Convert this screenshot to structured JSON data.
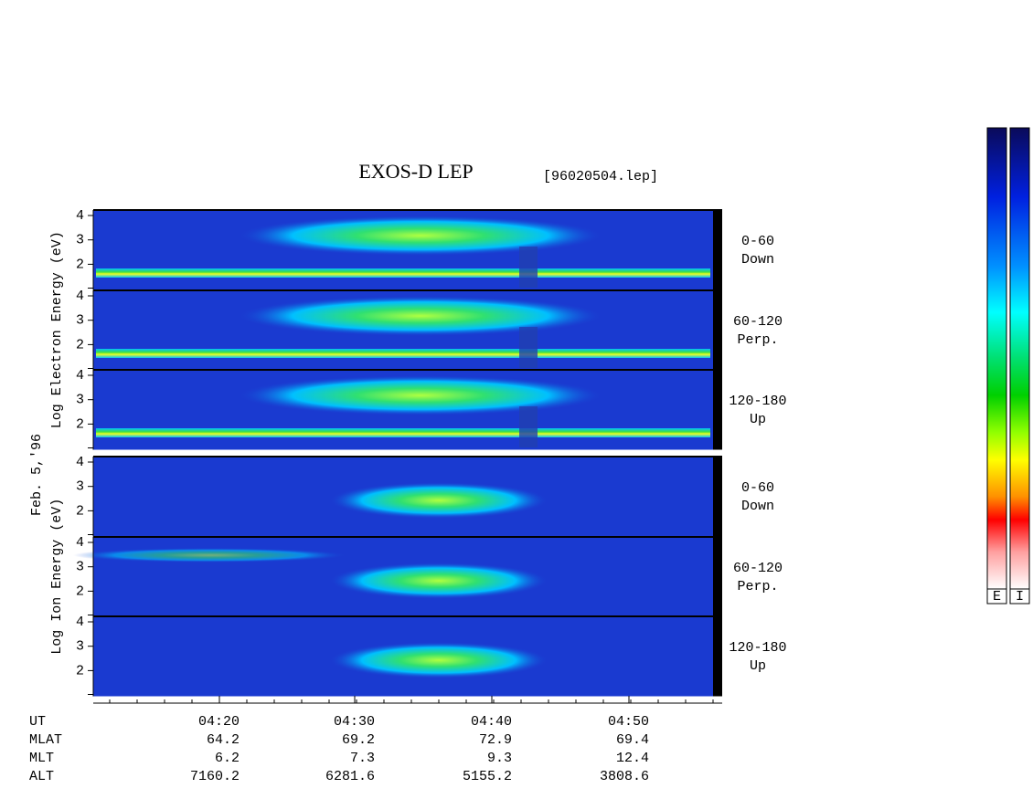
{
  "title": "EXOS-D LEP",
  "file": "[96020504.lep]",
  "date": "Feb. 5,'96",
  "groups": [
    {
      "ylabel": "Log Electron Energy (eV)",
      "panels": [
        {
          "yticks": [
            2,
            3,
            4
          ],
          "pitch": "0-60",
          "direction": "Down"
        },
        {
          "yticks": [
            2,
            3,
            4
          ],
          "pitch": "60-120",
          "direction": "Perp."
        },
        {
          "yticks": [
            2,
            3,
            4
          ],
          "pitch": "120-180",
          "direction": "Up"
        }
      ]
    },
    {
      "ylabel": "Log Ion Energy (eV)",
      "panels": [
        {
          "yticks": [
            2,
            3,
            4
          ],
          "pitch": "0-60",
          "direction": "Down"
        },
        {
          "yticks": [
            2,
            3,
            4
          ],
          "pitch": "60-120",
          "direction": "Perp."
        },
        {
          "yticks": [
            2,
            3,
            4
          ],
          "pitch": "120-180",
          "direction": "Up"
        }
      ]
    }
  ],
  "ephemeris": [
    {
      "label": "UT",
      "values": [
        "04:20",
        "04:30",
        "04:40",
        "04:50"
      ]
    },
    {
      "label": "MLAT",
      "values": [
        "64.2",
        "69.2",
        "72.9",
        "69.4"
      ]
    },
    {
      "label": "MLT",
      "values": [
        "6.2",
        "7.3",
        "9.3",
        "12.4"
      ]
    },
    {
      "label": "ALT",
      "values": [
        "7160.2",
        "6281.6",
        "5155.2",
        "3808.6"
      ]
    }
  ],
  "colorbars": [
    "E",
    "I"
  ]
}
